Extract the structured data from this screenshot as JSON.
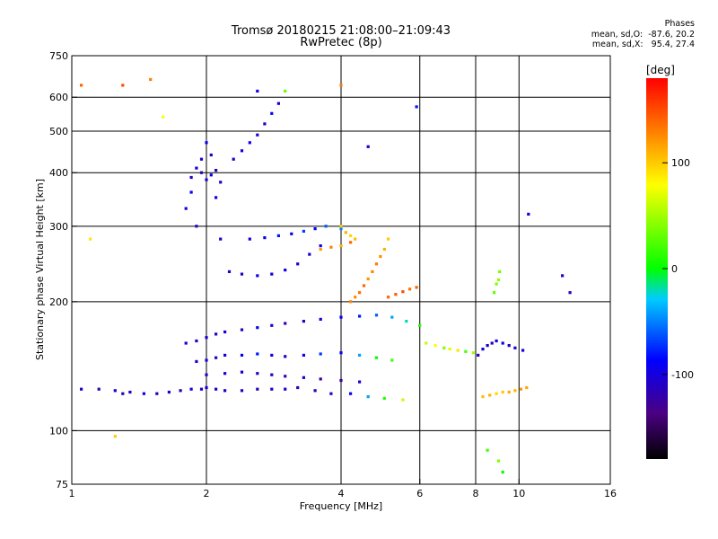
{
  "chart_data": {
    "type": "scatter",
    "title": "Tromsø 20180215 21:08:00–21:09:43",
    "subtitle": "RwPretec (8p)",
    "xlabel": "Frequency [MHz]",
    "ylabel": "Stationary phase Virtual Height [km]",
    "x_scale": "log",
    "y_scale": "log",
    "xlim": [
      1,
      16
    ],
    "ylim": [
      75,
      750
    ],
    "x_ticks": [
      1,
      2,
      4,
      6,
      8,
      10,
      16
    ],
    "y_ticks": [
      75,
      100,
      200,
      300,
      400,
      500,
      600,
      750
    ],
    "x_gridlines": [
      2,
      4,
      6,
      8,
      10
    ],
    "y_gridlines": [
      100,
      200,
      300,
      400,
      500,
      600
    ],
    "grid": true,
    "phases": {
      "title": "Phases",
      "line_o": "mean, sd,O:  -87.6, 20.2",
      "line_x": "mean, sd,X:   95.4, 27.4"
    },
    "colorbar": {
      "label": "[deg]",
      "ticks": [
        100,
        0,
        -100
      ],
      "range": [
        -180,
        180
      ]
    },
    "series": [
      {
        "x": [
          1.05,
          1.15,
          1.25,
          1.3,
          1.35,
          1.45,
          1.55,
          1.65,
          1.75,
          1.85,
          1.95,
          2.0,
          2.1,
          2.2,
          2.4,
          2.6,
          2.8,
          3.0,
          3.2,
          3.5,
          3.8,
          4.2,
          4.6,
          5.0,
          5.5
        ],
        "y": [
          125,
          125,
          124,
          122,
          123,
          122,
          122,
          123,
          124,
          125,
          125,
          126,
          125,
          124,
          124,
          125,
          125,
          125,
          126,
          124,
          122,
          122,
          120,
          119,
          118
        ],
        "phase": [
          -110,
          -115,
          -105,
          -120,
          -110,
          -100,
          -115,
          -110,
          -120,
          -105,
          -110,
          -100,
          -115,
          -108,
          -112,
          -118,
          -110,
          -105,
          -120,
          -115,
          -110,
          -90,
          -40,
          10,
          60
        ]
      },
      {
        "x": [
          1.8,
          1.9,
          2.0,
          2.1,
          2.2,
          2.4,
          2.6,
          2.8,
          3.0,
          3.3,
          3.6,
          4.0,
          4.4,
          4.8,
          5.2,
          5.6,
          6.0
        ],
        "y": [
          160,
          162,
          165,
          168,
          170,
          172,
          174,
          176,
          178,
          180,
          182,
          184,
          185,
          186,
          184,
          180,
          176
        ],
        "phase": [
          -100,
          -110,
          -105,
          -115,
          -100,
          -110,
          -95,
          -105,
          -120,
          -110,
          -100,
          -90,
          -80,
          -60,
          -40,
          -20,
          10
        ]
      },
      {
        "x": [
          1.9,
          2.0,
          2.1,
          2.2,
          2.4,
          2.6,
          2.8,
          3.0,
          3.3,
          3.6,
          4.0,
          4.4,
          4.8,
          5.2
        ],
        "y": [
          145,
          146,
          148,
          150,
          150,
          151,
          150,
          149,
          150,
          151,
          152,
          150,
          148,
          146
        ],
        "phase": [
          -110,
          -100,
          -115,
          -105,
          -90,
          -80,
          -100,
          -110,
          -95,
          -70,
          -85,
          -40,
          0,
          20
        ]
      },
      {
        "x": [
          2.0,
          2.2,
          2.4,
          2.6,
          2.8,
          3.0,
          3.3,
          3.6,
          4.0,
          4.4
        ],
        "y": [
          135,
          136,
          137,
          136,
          135,
          134,
          133,
          132,
          131,
          130
        ],
        "phase": [
          -110,
          -105,
          -100,
          -110,
          -115,
          -120,
          -100,
          -130,
          -125,
          -105
        ]
      },
      {
        "x": [
          1.85,
          1.9,
          1.95,
          2.0,
          2.05,
          2.1,
          2.15
        ],
        "y": [
          390,
          410,
          400,
          385,
          395,
          405,
          380
        ],
        "phase": [
          -110,
          -100,
          -120,
          -105,
          -95,
          -115,
          -110
        ]
      },
      {
        "x": [
          1.8,
          1.85,
          1.9,
          1.95,
          2.0,
          2.05,
          2.1,
          2.15
        ],
        "y": [
          330,
          360,
          300,
          430,
          470,
          440,
          350,
          280
        ],
        "phase": [
          -100,
          -90,
          -110,
          -105,
          -95,
          -115,
          -100,
          -110
        ]
      },
      {
        "x": [
          2.3,
          2.4,
          2.5,
          2.6,
          2.7,
          2.8,
          2.9
        ],
        "y": [
          430,
          450,
          470,
          490,
          520,
          550,
          580
        ],
        "phase": [
          -110,
          -100,
          -95,
          -105,
          -110,
          -90,
          -100
        ]
      },
      {
        "x": [
          2.25,
          2.4,
          2.6,
          2.8,
          3.0,
          3.2,
          3.4,
          3.6
        ],
        "y": [
          235,
          232,
          230,
          232,
          237,
          245,
          258,
          270
        ],
        "phase": [
          -105,
          -110,
          -100,
          -95,
          -100,
          -110,
          -105,
          -100
        ]
      },
      {
        "x": [
          2.5,
          2.7,
          2.9,
          3.1,
          3.3,
          3.5,
          3.7,
          4.0
        ],
        "y": [
          280,
          282,
          285,
          288,
          292,
          296,
          300,
          296
        ],
        "phase": [
          -100,
          -95,
          -80,
          -90,
          -70,
          -85,
          -60,
          -50
        ]
      },
      {
        "x": [
          3.6,
          3.8,
          4.0,
          4.2
        ],
        "y": [
          265,
          268,
          270,
          275
        ],
        "phase": [
          120,
          130,
          110,
          140
        ]
      },
      {
        "x": [
          4.2,
          4.3,
          4.4,
          4.5,
          4.6,
          4.7,
          4.8,
          4.9,
          5.0,
          5.1
        ],
        "y": [
          200,
          205,
          210,
          218,
          226,
          235,
          245,
          255,
          265,
          280
        ],
        "phase": [
          130,
          125,
          135,
          140,
          120,
          128,
          132,
          125,
          110,
          100
        ]
      },
      {
        "x": [
          5.1,
          5.3,
          5.5,
          5.7,
          5.9
        ],
        "y": [
          205,
          208,
          211,
          214,
          216
        ],
        "phase": [
          140,
          145,
          150,
          135,
          142
        ]
      },
      {
        "x": [
          4.0,
          4.1,
          4.2,
          4.3
        ],
        "y": [
          300,
          290,
          285,
          280
        ],
        "phase": [
          100,
          110,
          95,
          105
        ]
      },
      {
        "x": [
          8.3,
          8.6,
          8.9,
          9.2,
          9.5,
          9.8,
          10.1,
          10.4
        ],
        "y": [
          120,
          121,
          122,
          123,
          123,
          124,
          125,
          126
        ],
        "phase": [
          105,
          110,
          95,
          100,
          112,
          108,
          120,
          115
        ]
      },
      {
        "x": [
          8.1,
          8.3,
          8.5,
          8.7,
          8.9,
          9.2,
          9.5,
          9.8,
          10.2
        ],
        "y": [
          150,
          155,
          158,
          160,
          162,
          160,
          158,
          156,
          154
        ],
        "phase": [
          -110,
          -100,
          -105,
          -115,
          -100,
          -95,
          -110,
          -105,
          -100
        ]
      },
      {
        "x": [
          8.8,
          8.9,
          9.0,
          9.05
        ],
        "y": [
          210,
          220,
          225,
          235
        ],
        "phase": [
          30,
          40,
          45,
          35
        ]
      },
      {
        "x": [
          6.2,
          6.5,
          6.8,
          7.0,
          7.3,
          7.6,
          7.9
        ],
        "y": [
          160,
          158,
          156,
          155,
          154,
          153,
          152
        ],
        "phase": [
          60,
          80,
          40,
          70,
          90,
          20,
          50
        ]
      },
      {
        "x": [
          1.05,
          1.3,
          1.5,
          1.6,
          1.1,
          3.0,
          2.6,
          4.0,
          4.6,
          5.9,
          9.0,
          10.5,
          12.5,
          13.0,
          8.5,
          9.2,
          1.25
        ],
        "y": [
          640,
          640,
          660,
          540,
          280,
          620,
          620,
          640,
          460,
          570,
          85,
          320,
          230,
          210,
          90,
          80,
          97
        ],
        "phase": [
          140,
          150,
          130,
          80,
          90,
          30,
          -100,
          130,
          -100,
          -80,
          40,
          -100,
          -110,
          -120,
          20,
          0,
          100
        ]
      }
    ]
  }
}
